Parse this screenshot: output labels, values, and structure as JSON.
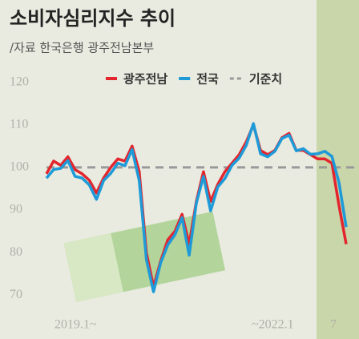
{
  "chart_data": {
    "type": "line",
    "title": "소비자심리지수 추이",
    "subtitle": "/자료 한국은행 광주전남본부",
    "categories": [
      "2019.1~",
      null,
      null,
      null,
      null,
      null,
      null,
      null,
      null,
      null,
      null,
      null,
      null,
      null,
      null,
      null,
      null,
      null,
      null,
      null,
      null,
      null,
      null,
      null,
      null,
      null,
      null,
      null,
      null,
      null,
      null,
      null,
      null,
      null,
      null,
      null,
      "~2022.1",
      null,
      null,
      null,
      null,
      null,
      "7"
    ],
    "series": [
      {
        "name": "광주전남",
        "color": "#e3262d",
        "values": [
          98.5,
          101.5,
          100.5,
          102.5,
          99.5,
          98.5,
          97,
          94,
          97.5,
          100,
          102,
          101.5,
          105,
          99,
          80,
          72,
          78,
          83,
          85,
          89,
          82,
          92,
          99,
          92,
          96,
          99,
          101,
          103,
          106,
          110,
          104,
          103,
          104,
          107,
          108,
          104,
          104,
          103,
          102,
          102,
          101,
          91,
          82
        ]
      },
      {
        "name": "전국",
        "color": "#1e9ad8",
        "values": [
          97.5,
          99.5,
          99.8,
          101.6,
          97.9,
          97.5,
          95.9,
          92.5,
          96.9,
          98.6,
          101.0,
          100.4,
          104.2,
          96.9,
          78.4,
          70.8,
          77.6,
          81.8,
          84.2,
          88.2,
          79.4,
          91.6,
          97.9,
          89.8,
          95.4,
          97.4,
          100.5,
          102.2,
          105.2,
          110.3,
          103.2,
          102.5,
          103.8,
          106.8,
          107.6,
          103.9,
          104.4,
          103.1,
          103.2,
          103.8,
          102.6,
          96.4,
          86.0
        ]
      }
    ],
    "reference": {
      "name": "기준치",
      "value": 100,
      "color": "#999999"
    },
    "ylim": [
      68,
      122
    ],
    "yticks": [
      70,
      80,
      90,
      100,
      110,
      120
    ]
  }
}
